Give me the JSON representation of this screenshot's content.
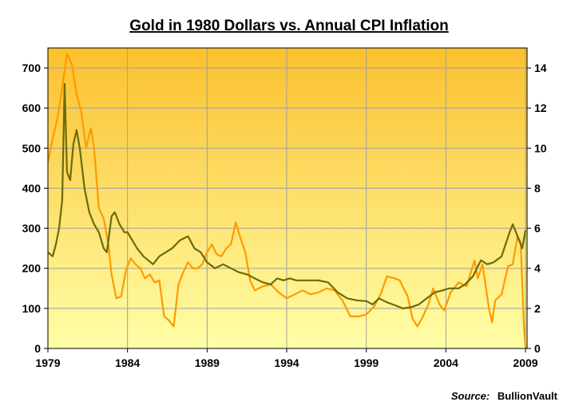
{
  "chart_data": {
    "type": "line",
    "title": "Gold in 1980 Dollars vs. Annual CPI Inflation",
    "source_label": "Source:",
    "source_name": "BullionVault",
    "xlabel": "",
    "ylabel": "",
    "grid": true,
    "x_ticks": [
      "1979",
      "1984",
      "1989",
      "1994",
      "1999",
      "2004",
      "2009"
    ],
    "xlim": [
      1979,
      2009.1
    ],
    "y_left": {
      "lim": [
        0,
        750
      ],
      "ticks": [
        "0",
        "100",
        "200",
        "300",
        "400",
        "500",
        "600",
        "700"
      ]
    },
    "y_right": {
      "lim": [
        0,
        15
      ],
      "ticks": [
        "0",
        "2",
        "4",
        "6",
        "8",
        "10",
        "12",
        "14"
      ]
    },
    "colors": {
      "gold": "#6b6b0a",
      "cpi": "#ff9a00",
      "bg_top": "#fbc02d",
      "bg_bottom": "#ffffa8",
      "grid": "#a0a0a0"
    },
    "series": [
      {
        "axis": "left",
        "color": "#6b6b0a",
        "points": [
          [
            1979.0,
            240
          ],
          [
            1979.3,
            230
          ],
          [
            1979.5,
            260
          ],
          [
            1979.7,
            300
          ],
          [
            1979.9,
            370
          ],
          [
            1980.05,
            660
          ],
          [
            1980.2,
            440
          ],
          [
            1980.4,
            420
          ],
          [
            1980.6,
            510
          ],
          [
            1980.8,
            545
          ],
          [
            1981.0,
            500
          ],
          [
            1981.3,
            400
          ],
          [
            1981.6,
            340
          ],
          [
            1981.9,
            310
          ],
          [
            1982.2,
            290
          ],
          [
            1982.5,
            250
          ],
          [
            1982.7,
            240
          ],
          [
            1983.0,
            330
          ],
          [
            1983.2,
            340
          ],
          [
            1983.5,
            310
          ],
          [
            1983.8,
            290
          ],
          [
            1984.0,
            290
          ],
          [
            1984.3,
            270
          ],
          [
            1984.6,
            250
          ],
          [
            1985.0,
            230
          ],
          [
            1985.3,
            220
          ],
          [
            1985.6,
            210
          ],
          [
            1986.0,
            230
          ],
          [
            1986.4,
            240
          ],
          [
            1986.8,
            250
          ],
          [
            1987.3,
            270
          ],
          [
            1987.8,
            280
          ],
          [
            1988.2,
            250
          ],
          [
            1988.6,
            240
          ],
          [
            1989.0,
            215
          ],
          [
            1989.5,
            200
          ],
          [
            1990.0,
            210
          ],
          [
            1990.5,
            200
          ],
          [
            1991.0,
            190
          ],
          [
            1991.5,
            185
          ],
          [
            1992.0,
            175
          ],
          [
            1992.5,
            165
          ],
          [
            1993.0,
            160
          ],
          [
            1993.4,
            175
          ],
          [
            1993.8,
            170
          ],
          [
            1994.2,
            175
          ],
          [
            1994.6,
            170
          ],
          [
            1995.0,
            170
          ],
          [
            1996.0,
            170
          ],
          [
            1996.6,
            165
          ],
          [
            1997.2,
            140
          ],
          [
            1997.8,
            125
          ],
          [
            1998.4,
            120
          ],
          [
            1999.0,
            118
          ],
          [
            1999.4,
            110
          ],
          [
            1999.8,
            125
          ],
          [
            2000.3,
            115
          ],
          [
            2000.8,
            108
          ],
          [
            2001.3,
            100
          ],
          [
            2001.8,
            103
          ],
          [
            2002.3,
            110
          ],
          [
            2002.8,
            125
          ],
          [
            2003.3,
            140
          ],
          [
            2003.8,
            145
          ],
          [
            2004.2,
            150
          ],
          [
            2004.8,
            150
          ],
          [
            2005.2,
            160
          ],
          [
            2005.7,
            180
          ],
          [
            2006.2,
            220
          ],
          [
            2006.6,
            210
          ],
          [
            2007.0,
            215
          ],
          [
            2007.5,
            230
          ],
          [
            2008.0,
            290
          ],
          [
            2008.2,
            310
          ],
          [
            2008.5,
            280
          ],
          [
            2008.8,
            250
          ],
          [
            2009.0,
            295
          ]
        ]
      },
      {
        "axis": "right",
        "color": "#ff9a00",
        "points": [
          [
            1979.0,
            9.3
          ],
          [
            1979.3,
            10.5
          ],
          [
            1979.6,
            11.5
          ],
          [
            1979.9,
            13.0
          ],
          [
            1980.2,
            14.7
          ],
          [
            1980.5,
            14.2
          ],
          [
            1980.8,
            12.7
          ],
          [
            1981.1,
            11.8
          ],
          [
            1981.4,
            10.0
          ],
          [
            1981.7,
            11.0
          ],
          [
            1981.9,
            10.0
          ],
          [
            1982.2,
            7.0
          ],
          [
            1982.5,
            6.5
          ],
          [
            1982.8,
            5.2
          ],
          [
            1983.0,
            3.7
          ],
          [
            1983.3,
            2.5
          ],
          [
            1983.6,
            2.6
          ],
          [
            1983.9,
            3.9
          ],
          [
            1984.2,
            4.5
          ],
          [
            1984.5,
            4.2
          ],
          [
            1984.8,
            4.0
          ],
          [
            1985.1,
            3.5
          ],
          [
            1985.4,
            3.7
          ],
          [
            1985.7,
            3.3
          ],
          [
            1986.0,
            3.4
          ],
          [
            1986.3,
            1.6
          ],
          [
            1986.6,
            1.4
          ],
          [
            1986.9,
            1.1
          ],
          [
            1987.2,
            3.2
          ],
          [
            1987.5,
            3.8
          ],
          [
            1987.8,
            4.3
          ],
          [
            1988.1,
            4.0
          ],
          [
            1988.4,
            4.0
          ],
          [
            1988.7,
            4.2
          ],
          [
            1989.0,
            4.8
          ],
          [
            1989.3,
            5.2
          ],
          [
            1989.6,
            4.7
          ],
          [
            1989.9,
            4.6
          ],
          [
            1990.2,
            5.0
          ],
          [
            1990.5,
            5.2
          ],
          [
            1990.8,
            6.3
          ],
          [
            1991.1,
            5.5
          ],
          [
            1991.4,
            4.8
          ],
          [
            1991.7,
            3.4
          ],
          [
            1992.0,
            2.9
          ],
          [
            1992.5,
            3.1
          ],
          [
            1993.0,
            3.2
          ],
          [
            1993.5,
            2.8
          ],
          [
            1994.0,
            2.5
          ],
          [
            1994.5,
            2.7
          ],
          [
            1995.0,
            2.9
          ],
          [
            1995.5,
            2.7
          ],
          [
            1996.0,
            2.8
          ],
          [
            1996.5,
            3.0
          ],
          [
            1997.0,
            2.9
          ],
          [
            1997.5,
            2.4
          ],
          [
            1998.0,
            1.6
          ],
          [
            1998.5,
            1.6
          ],
          [
            1999.0,
            1.7
          ],
          [
            1999.5,
            2.1
          ],
          [
            1999.9,
            2.7
          ],
          [
            2000.3,
            3.6
          ],
          [
            2000.8,
            3.5
          ],
          [
            2001.1,
            3.4
          ],
          [
            2001.6,
            2.6
          ],
          [
            2001.9,
            1.5
          ],
          [
            2002.2,
            1.1
          ],
          [
            2002.5,
            1.5
          ],
          [
            2002.9,
            2.2
          ],
          [
            2003.2,
            3.0
          ],
          [
            2003.6,
            2.2
          ],
          [
            2003.9,
            1.9
          ],
          [
            2004.3,
            2.8
          ],
          [
            2004.8,
            3.3
          ],
          [
            2005.3,
            3.1
          ],
          [
            2005.8,
            4.4
          ],
          [
            2006.0,
            3.5
          ],
          [
            2006.3,
            4.2
          ],
          [
            2006.7,
            2.0
          ],
          [
            2006.9,
            1.3
          ],
          [
            2007.1,
            2.4
          ],
          [
            2007.5,
            2.7
          ],
          [
            2007.9,
            4.1
          ],
          [
            2008.2,
            4.2
          ],
          [
            2008.5,
            5.6
          ],
          [
            2008.7,
            5.3
          ],
          [
            2008.9,
            1.1
          ],
          [
            2009.0,
            0.1
          ],
          [
            2009.1,
            -0.2
          ]
        ]
      }
    ]
  }
}
